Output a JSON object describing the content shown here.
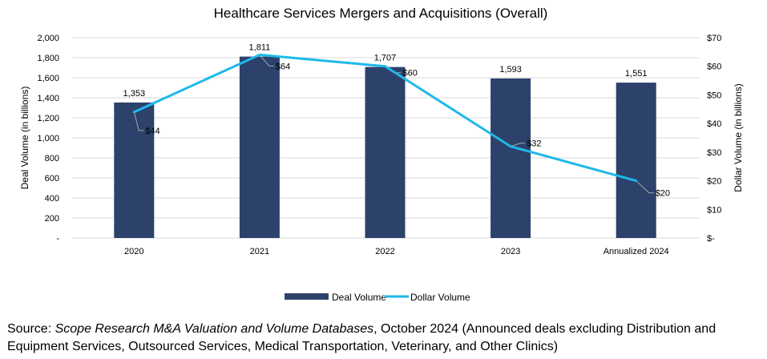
{
  "chart_data": {
    "type": "bar+line",
    "title": "Healthcare Services Mergers and Acquisitions (Overall)",
    "categories": [
      "2020",
      "2021",
      "2022",
      "2023",
      "Annualized 2024"
    ],
    "series": [
      {
        "name": "Deal Volume",
        "type": "bar",
        "axis": "left",
        "color": "#2C426B",
        "values": [
          1353,
          1811,
          1707,
          1593,
          1551
        ],
        "labels": [
          "1,353",
          "1,811",
          "1,707",
          "1,593",
          "1,551"
        ]
      },
      {
        "name": "Dollar Volume",
        "type": "line",
        "axis": "right",
        "color": "#1EB9EA",
        "values": [
          44,
          64,
          60,
          32,
          20
        ],
        "labels": [
          "$44",
          "$64",
          "$60",
          "$32",
          "$20"
        ]
      }
    ],
    "ylabel": "Deal Volume (in billions)",
    "y2label": "Dollar Volume (in billions)",
    "ylim": [
      0,
      2000
    ],
    "y2lim": [
      0,
      70
    ],
    "yticks": [
      "-",
      "200",
      "400",
      "600",
      "800",
      "1,000",
      "1,200",
      "1,400",
      "1,600",
      "1,800",
      "2,000"
    ],
    "y2ticks": [
      "$-",
      "$10",
      "$20",
      "$30",
      "$40",
      "$50",
      "$60",
      "$70"
    ],
    "grid": true,
    "legend": "bottom"
  },
  "source": {
    "prefix": "Source: ",
    "italic": "Scope Research M&A Valuation and Volume Databases",
    "rest": ", October 2024 (Announced deals excluding Distribution and Equipment Services, Outsourced Services, Medical Transportation, Veterinary, and Other Clinics)"
  }
}
